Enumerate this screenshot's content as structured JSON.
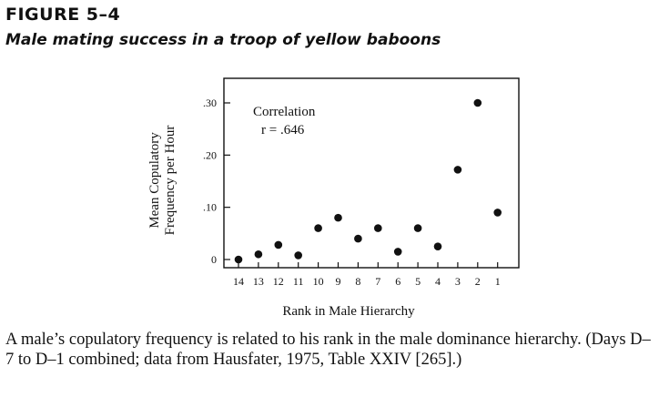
{
  "figure": {
    "label": "FIGURE 5–4",
    "title": "Male mating success in a troop of yellow baboons",
    "caption": "A male’s copulatory frequency is related to his rank in the male dominance hierarchy. (Days D–7 to D–1 combined; data from Hausfater, 1975, Table XXIV [265].)"
  },
  "chart_data": {
    "type": "scatter",
    "title": "",
    "xlabel": "Rank in Male Hierarchy",
    "ylabel_lines": [
      "Mean Copulatory",
      "Frequency per Hour"
    ],
    "annotation_lines": [
      "Correlation",
      "r = .646"
    ],
    "x_ticks": [
      "14",
      "13",
      "12",
      "11",
      "10",
      "9",
      "8",
      "7",
      "6",
      "5",
      "4",
      "3",
      "2",
      "1"
    ],
    "y_ticks": [
      {
        "value": 0,
        "label": "0"
      },
      {
        "value": 0.1,
        "label": ".10"
      },
      {
        "value": 0.2,
        "label": ".20"
      },
      {
        "value": 0.3,
        "label": ".30"
      }
    ],
    "ylim": [
      -0.01,
      0.36
    ],
    "grid": false,
    "points": [
      {
        "rank": "14",
        "y": 0.0
      },
      {
        "rank": "13",
        "y": 0.01
      },
      {
        "rank": "12",
        "y": 0.028
      },
      {
        "rank": "11",
        "y": 0.008
      },
      {
        "rank": "10",
        "y": 0.06
      },
      {
        "rank": "9",
        "y": 0.08
      },
      {
        "rank": "8",
        "y": 0.04
      },
      {
        "rank": "7",
        "y": 0.06
      },
      {
        "rank": "6",
        "y": 0.015
      },
      {
        "rank": "5",
        "y": 0.06
      },
      {
        "rank": "4",
        "y": 0.025
      },
      {
        "rank": "3",
        "y": 0.172
      },
      {
        "rank": "2",
        "y": 0.3
      },
      {
        "rank": "1",
        "y": 0.09
      }
    ]
  }
}
